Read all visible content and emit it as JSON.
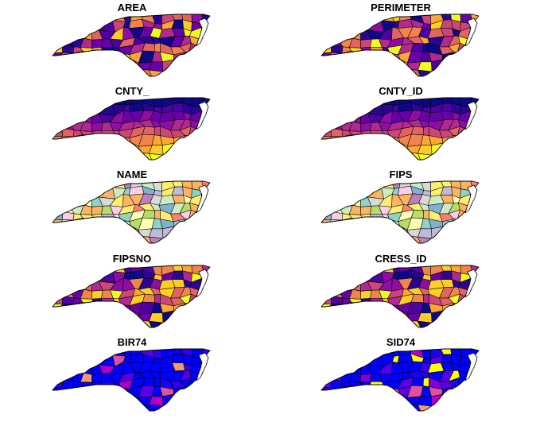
{
  "figure": {
    "background": "#ffffff",
    "layout": "5 rows x 2 columns of choropleth maps",
    "panels": [
      {
        "title": "AREA",
        "palette": "sf-continuous",
        "seed": 11
      },
      {
        "title": "PERIMETER",
        "palette": "sf-continuous",
        "seed": 23
      },
      {
        "title": "CNTY_",
        "palette": "sf-continuous-gradient",
        "seed": 37
      },
      {
        "title": "CNTY_ID",
        "palette": "sf-continuous-gradient",
        "seed": 37
      },
      {
        "title": "NAME",
        "palette": "categorical-pastel",
        "seed": 51
      },
      {
        "title": "FIPS",
        "palette": "categorical-pastel",
        "seed": 51
      },
      {
        "title": "FIPSNO",
        "palette": "sf-continuous",
        "seed": 67
      },
      {
        "title": "CRESS_ID",
        "palette": "sf-continuous",
        "seed": 67
      },
      {
        "title": "BIR74",
        "palette": "sf-skewed-low",
        "seed": 79
      },
      {
        "title": "SID74",
        "palette": "sf-skewed-low",
        "seed": 83
      }
    ]
  },
  "palettes": {
    "sf-continuous": [
      "#0D0887",
      "#2A0593",
      "#4B03A1",
      "#6A00A8",
      "#8F0DA4",
      "#B12A90",
      "#CC4778",
      "#E16462",
      "#F2844B",
      "#FCA636",
      "#FCCE25",
      "#F0F921"
    ],
    "sf-skewed-low": [
      "#0000FF",
      "#0000FF",
      "#0000FF",
      "#0000FF",
      "#1A00F5",
      "#3300EE",
      "#5A00E6",
      "#8000D9",
      "#B000C8",
      "#E0509E",
      "#F39A6C",
      "#FFFF00"
    ],
    "categorical-pastel": [
      "#8DD3C7",
      "#FFFFB3",
      "#BEBADA",
      "#FB8072",
      "#80B1D3",
      "#FDB462",
      "#B3DE69",
      "#FCCDE5",
      "#D9D9D9",
      "#BC80BD",
      "#CCEBC5",
      "#FFED6F"
    ]
  }
}
